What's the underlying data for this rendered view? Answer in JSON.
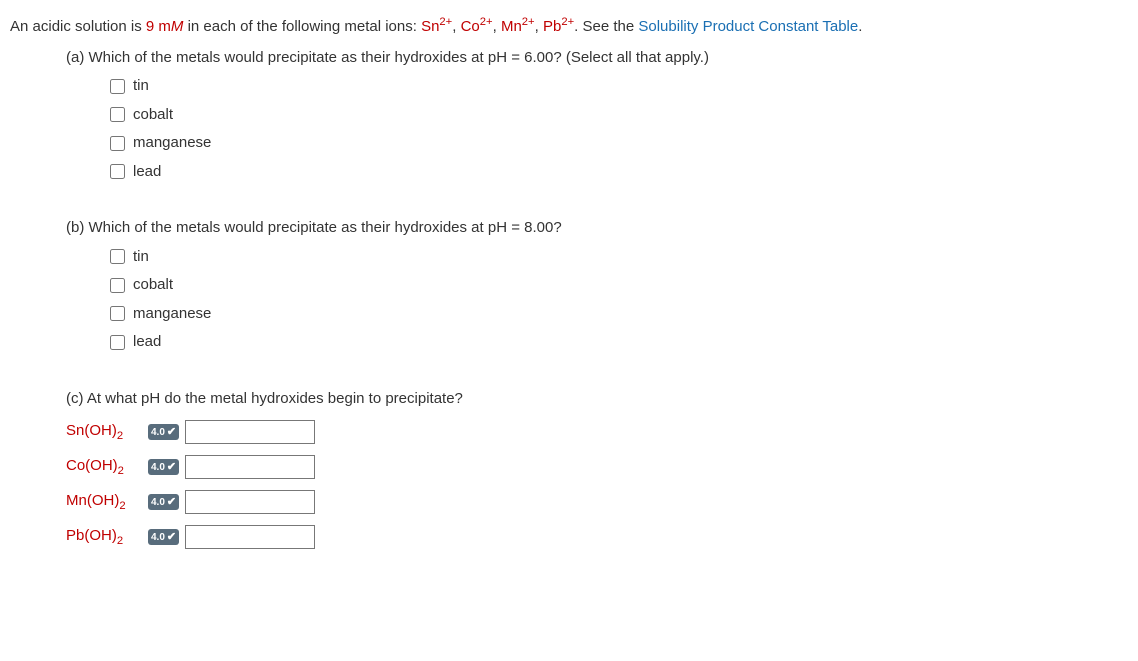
{
  "intro": {
    "prefix": "An acidic solution is ",
    "conc_value": "9 m",
    "conc_unit_italic": "M",
    "mid": " in each of the following metal ions: ",
    "ions": [
      "Sn",
      "Co",
      "Mn",
      "Pb"
    ],
    "ion_charge": "2+",
    "after_ions": ". See the ",
    "link_text": "Solubility Product Constant Table",
    "period": "."
  },
  "partA": {
    "label": "(a) Which of the metals would precipitate as their hydroxides at pH = 6.00? (Select all that apply.)",
    "options": [
      "tin",
      "cobalt",
      "manganese",
      "lead"
    ]
  },
  "partB": {
    "label": "(b) Which of the metals would precipitate as their hydroxides at pH = 8.00?",
    "options": [
      "tin",
      "cobalt",
      "manganese",
      "lead"
    ]
  },
  "partC": {
    "label": "(c) At what pH do the metal hydroxides begin to precipitate?",
    "badge_text": "4.0",
    "items": [
      {
        "formula_base": "Sn(OH)",
        "formula_sub": "2"
      },
      {
        "formula_base": "Co(OH)",
        "formula_sub": "2"
      },
      {
        "formula_base": "Mn(OH)",
        "formula_sub": "2"
      },
      {
        "formula_base": "Pb(OH)",
        "formula_sub": "2"
      }
    ]
  }
}
